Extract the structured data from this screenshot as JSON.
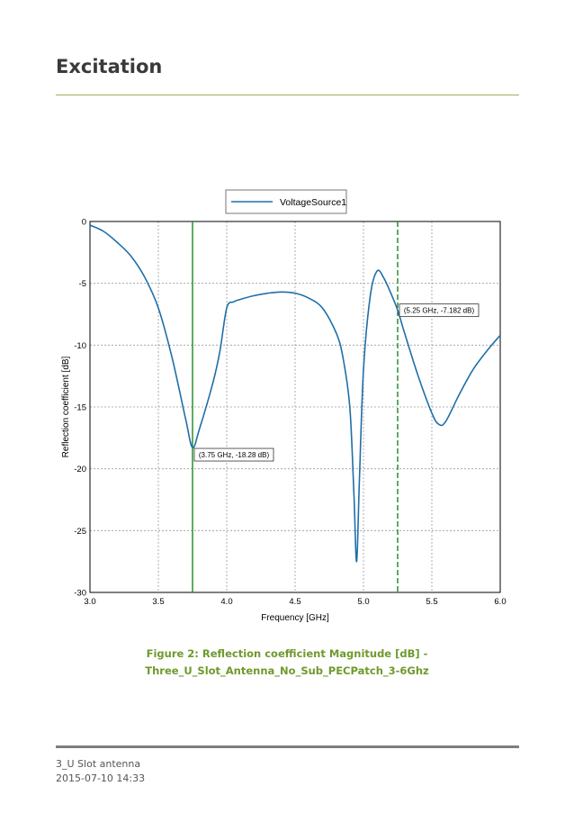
{
  "section": {
    "title": "Excitation"
  },
  "chart_data": {
    "type": "line",
    "xlabel": "Frequency [GHz]",
    "ylabel": "Reflection coefficient [dB]",
    "xlim": [
      3.0,
      6.0
    ],
    "ylim": [
      -30,
      0
    ],
    "xticks": [
      "3.0",
      "3.5",
      "4.0",
      "4.5",
      "5.0",
      "5.5",
      "6.0"
    ],
    "yticks": [
      "0",
      "-5",
      "-10",
      "-15",
      "-20",
      "-25",
      "-30"
    ],
    "grid": true,
    "legend": {
      "position": "top-center",
      "entries": [
        "VoltageSource1"
      ]
    },
    "series": [
      {
        "name": "VoltageSource1",
        "color": "#1f6fa8",
        "x": [
          3.0,
          3.1,
          3.2,
          3.3,
          3.4,
          3.5,
          3.6,
          3.7,
          3.75,
          3.8,
          3.9,
          3.95,
          4.0,
          4.05,
          4.1,
          4.2,
          4.3,
          4.4,
          4.5,
          4.6,
          4.7,
          4.8,
          4.85,
          4.9,
          4.93,
          4.95,
          4.97,
          5.0,
          5.05,
          5.1,
          5.15,
          5.2,
          5.25,
          5.3,
          5.4,
          5.5,
          5.55,
          5.6,
          5.7,
          5.8,
          5.9,
          6.0
        ],
        "y": [
          -0.3,
          -0.8,
          -1.7,
          -2.8,
          -4.5,
          -7.0,
          -11.0,
          -16.0,
          -18.28,
          -16.8,
          -13.0,
          -10.5,
          -7.0,
          -6.5,
          -6.3,
          -6.0,
          -5.8,
          -5.7,
          -5.8,
          -6.2,
          -7.0,
          -9.0,
          -11.0,
          -15.0,
          -22.0,
          -27.5,
          -21.0,
          -12.0,
          -6.0,
          -4.0,
          -4.6,
          -5.8,
          -7.182,
          -9.0,
          -12.5,
          -15.5,
          -16.4,
          -16.2,
          -14.0,
          -12.0,
          -10.5,
          -9.2
        ]
      }
    ],
    "markers": [
      {
        "x": 3.75,
        "style": "solid",
        "color": "#1a8a1a",
        "label": "(3.75 GHz, -18.28 dB)",
        "y": -18.28
      },
      {
        "x": 5.25,
        "style": "dashed",
        "color": "#1a8a1a",
        "label": "(5.25 GHz, -7.182 dB)",
        "y": -7.182
      }
    ]
  },
  "caption": {
    "line1": "Figure 2: Reflection coefficient Magnitude [dB] -",
    "line2": "Three_U_Slot_Antenna_No_Sub_PECPatch_3-6Ghz"
  },
  "footer": {
    "doc_name": "3_U Slot antenna",
    "timestamp": "2015-07-10 14:33"
  }
}
